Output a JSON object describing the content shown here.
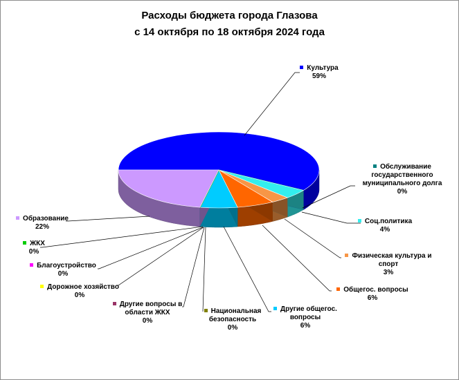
{
  "chart_data": {
    "type": "pie",
    "style": "3d",
    "title_lines": [
      "Расходы бюджета города Глазова",
      "с 14 октября по 18 октября 2024 года"
    ],
    "slices": [
      {
        "name": "Культура",
        "value": 59,
        "label": "59%",
        "color": "#0000ff"
      },
      {
        "name": "Обслуживание государственного муниципального долга",
        "name_lines": [
          "Обслуживание",
          "государственного",
          "муниципального  долга"
        ],
        "value": 0,
        "label": "0%",
        "color": "#008080"
      },
      {
        "name": "Соц.политика",
        "value": 4,
        "label": "4%",
        "color": "#33eeee"
      },
      {
        "name": "Физическая культура и спорт",
        "name_lines": [
          "Физическая культура и",
          "спорт"
        ],
        "value": 3,
        "label": "3%",
        "color": "#f79646"
      },
      {
        "name": "Общегос. вопросы",
        "value": 6,
        "label": "6%",
        "color": "#ff6600"
      },
      {
        "name": "Другие общегос. вопросы",
        "name_lines": [
          "Другие общегос.",
          "вопросы"
        ],
        "value": 6,
        "label": "6%",
        "color": "#00ccff"
      },
      {
        "name": "Национальная безопасность",
        "name_lines": [
          "Национальная",
          "безопасность"
        ],
        "value": 0,
        "label": "0%",
        "color": "#808000"
      },
      {
        "name": "Другие вопросы в области ЖКХ",
        "name_lines": [
          "Другие вопросы в",
          "области ЖКХ"
        ],
        "value": 0,
        "label": "0%",
        "color": "#993366"
      },
      {
        "name": "Дорожное хозяйство",
        "value": 0,
        "label": "0%",
        "color": "#ffff00"
      },
      {
        "name": "Благоустройство",
        "value": 0,
        "label": "0%",
        "color": "#ff00ff"
      },
      {
        "name": "ЖКХ",
        "value": 0,
        "label": "0%",
        "color": "#00cc00"
      },
      {
        "name": "Образование",
        "value": 22,
        "label": "22%",
        "color": "#cc99ff"
      }
    ],
    "legend": "data-labels"
  }
}
